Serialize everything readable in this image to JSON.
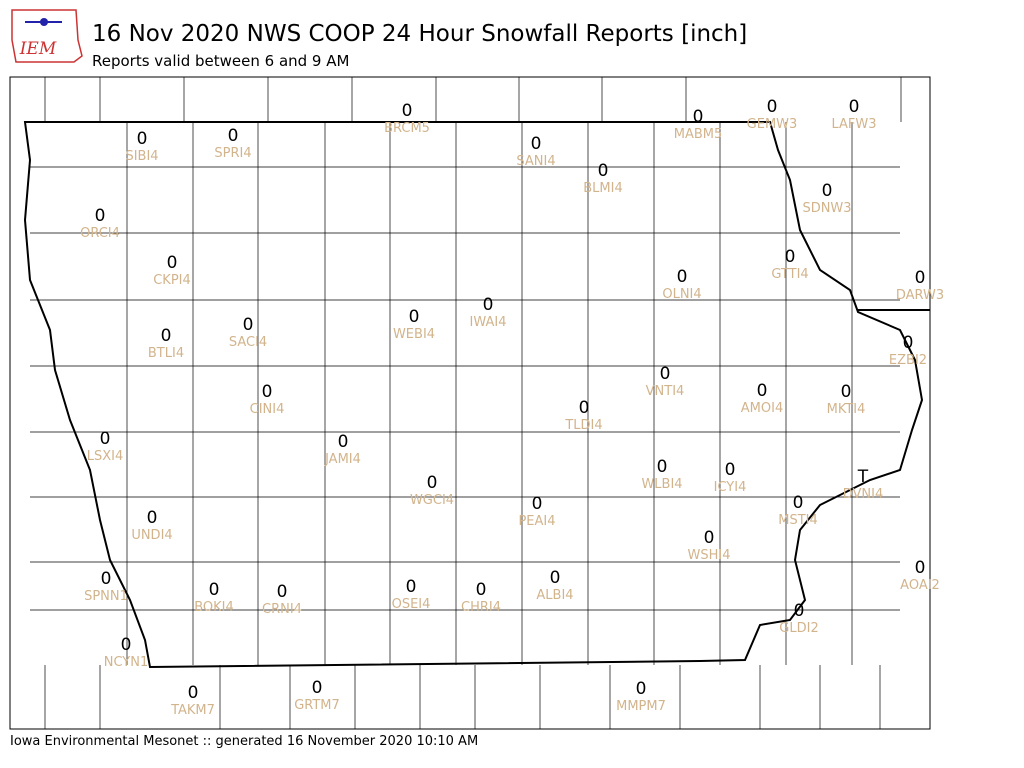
{
  "header": {
    "logo": "IEM",
    "title": "16 Nov 2020 NWS COOP 24 Hour Snowfall Reports [inch]",
    "subtitle": "Reports valid between 6 and 9 AM"
  },
  "stations": [
    {
      "label": "BRCM5",
      "value": 0
    },
    {
      "label": "SIBI4",
      "value": 0
    },
    {
      "label": "SPRI4",
      "value": 0
    },
    {
      "label": "SANI4",
      "value": 0
    },
    {
      "label": "MABM5",
      "value": 0
    },
    {
      "label": "GEMW3",
      "value": 0
    },
    {
      "label": "LAFW3",
      "value": 0
    },
    {
      "label": "BLMI4",
      "value": 0
    },
    {
      "label": "ORCI4",
      "value": 0
    },
    {
      "label": "SDNW3",
      "value": 0
    },
    {
      "label": "CKPI4",
      "value": 0
    },
    {
      "label": "GTTI4",
      "value": 0
    },
    {
      "label": "OLNI4",
      "value": 0
    },
    {
      "label": "DARW3",
      "value": 0
    },
    {
      "label": "IWAI4",
      "value": 0
    },
    {
      "label": "WEBI4",
      "value": 0
    },
    {
      "label": "SACI4",
      "value": 0
    },
    {
      "label": "BTLI4",
      "value": 0
    },
    {
      "label": "EZBI2",
      "value": 0
    },
    {
      "label": "VNTI4",
      "value": 0
    },
    {
      "label": "CINI4",
      "value": 0
    },
    {
      "label": "AMOI4",
      "value": 0
    },
    {
      "label": "MKTI4",
      "value": 0
    },
    {
      "label": "TLDI4",
      "value": 0
    },
    {
      "label": "LSXI4",
      "value": 0
    },
    {
      "label": "JAMI4",
      "value": 0
    },
    {
      "label": "WLBI4",
      "value": 0
    },
    {
      "label": "ICYI4",
      "value": 0
    },
    {
      "label": "DVNI4",
      "value": "T"
    },
    {
      "label": "WGCI4",
      "value": 0
    },
    {
      "label": "PEAI4",
      "value": 0
    },
    {
      "label": "MSTI4",
      "value": 0
    },
    {
      "label": "UNDI4",
      "value": 0
    },
    {
      "label": "WSHI4",
      "value": 0
    },
    {
      "label": "AOAI2",
      "value": 0
    },
    {
      "label": "SPNN1",
      "value": 0
    },
    {
      "label": "OSEI4",
      "value": 0
    },
    {
      "label": "CHRI4",
      "value": 0
    },
    {
      "label": "ALBI4",
      "value": 0
    },
    {
      "label": "BOKI4",
      "value": 0
    },
    {
      "label": "CRNI4",
      "value": 0
    },
    {
      "label": "GLDI2",
      "value": 0
    },
    {
      "label": "NCYN1",
      "value": 0
    },
    {
      "label": "TAKM7",
      "value": 0
    },
    {
      "label": "GRTM7",
      "value": 0
    },
    {
      "label": "MMPM7",
      "value": 0
    }
  ],
  "footer": "Iowa Environmental Mesonet :: generated 16 November 2020 10:10 AM"
}
